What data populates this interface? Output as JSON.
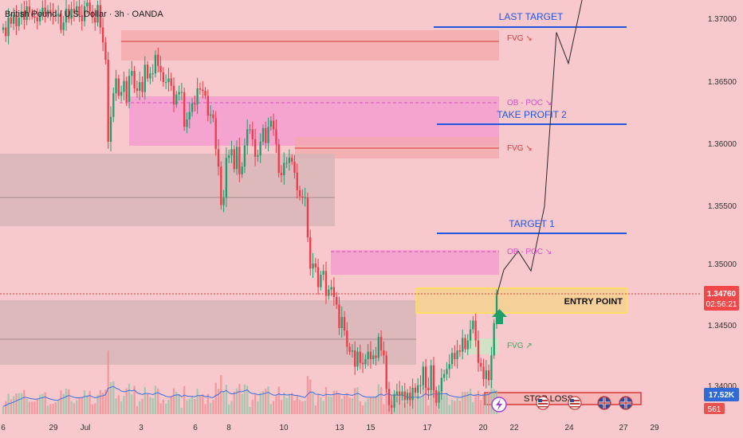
{
  "header": {
    "symbol_title": "British Pound / U.S. Dollar · 3h · OANDA"
  },
  "chart_data": {
    "type": "candlestick",
    "symbol": "British Pound / U.S. Dollar",
    "interval": "3h",
    "broker": "OANDA",
    "y_axis": {
      "ylim": [
        1.3375,
        1.3726
      ],
      "ticks": [
        "1.37000",
        "1.36500",
        "1.36000",
        "1.35500",
        "1.35000",
        "1.34500",
        "1.34000"
      ]
    },
    "x_axis": {
      "ticks": [
        "6",
        "29",
        "Jul",
        "3",
        "6",
        "8",
        "10",
        "13",
        "15",
        "17",
        "20",
        "22",
        "24",
        "27",
        "29"
      ]
    },
    "price_label": {
      "value": "1.34760",
      "countdown": "02:56:21"
    },
    "volume_label": {
      "value": "17.52K",
      "count": "561"
    },
    "annotations": [
      {
        "label": "LAST TARGET",
        "price": 1.3695
      },
      {
        "label": "TAKE PROFIT 2",
        "price": 1.3617
      },
      {
        "label": "TARGET 1",
        "price": 1.3527
      },
      {
        "label": "ENTRY POINT",
        "price_top": 1.3479,
        "price_bottom": 1.3464
      },
      {
        "label": "STOP LOSS",
        "price": 1.3386
      }
    ],
    "zones": [
      {
        "label": "FVG ↘",
        "price_top": 1.3696,
        "price_bottom": 1.367
      },
      {
        "label": "OB - POC ↘",
        "price_top": 1.3641,
        "price_bottom": 1.36
      },
      {
        "label": "FVG ↘",
        "price_top": 1.3608,
        "price_bottom": 1.3589
      },
      {
        "label": "OB - POC ↘",
        "price_top": 1.3514,
        "price_bottom": 1.3493
      },
      {
        "label": "FVG ↗",
        "price_top": 1.3437,
        "price_bottom": 1.3426
      }
    ],
    "projection_path": [
      1.3476,
      1.3497,
      1.3512,
      1.3496,
      1.3548,
      1.3688,
      1.3663,
      1.3717
    ],
    "candles": [
      [
        1.369,
        1.3692
      ],
      [
        1.3692,
        1.3685
      ],
      [
        1.3685,
        1.37
      ],
      [
        1.37,
        1.3695
      ],
      [
        1.3695,
        1.3702
      ],
      [
        1.3702,
        1.3693
      ],
      [
        1.3693,
        1.37
      ],
      [
        1.37,
        1.3705
      ],
      [
        1.3705,
        1.3698
      ],
      [
        1.3698,
        1.3709
      ],
      [
        1.3709,
        1.3704
      ],
      [
        1.3704,
        1.3701
      ],
      [
        1.3701,
        1.37
      ],
      [
        1.37,
        1.3697
      ],
      [
        1.3697,
        1.3703
      ],
      [
        1.3703,
        1.3708
      ],
      [
        1.3708,
        1.3703
      ],
      [
        1.3703,
        1.3706
      ],
      [
        1.3706,
        1.3703
      ],
      [
        1.3703,
        1.3702
      ],
      [
        1.3702,
        1.3701
      ],
      [
        1.3701,
        1.3703
      ],
      [
        1.3703,
        1.369
      ],
      [
        1.369,
        1.3696
      ],
      [
        1.3696,
        1.3707
      ],
      [
        1.3707,
        1.3699
      ],
      [
        1.3699,
        1.3707
      ],
      [
        1.3707,
        1.3704
      ],
      [
        1.3704,
        1.3709
      ],
      [
        1.3709,
        1.3702
      ],
      [
        1.3702,
        1.3697
      ],
      [
        1.3697,
        1.3709
      ],
      [
        1.3709,
        1.3712
      ],
      [
        1.3712,
        1.3705
      ],
      [
        1.3705,
        1.37
      ],
      [
        1.37,
        1.3696
      ],
      [
        1.3696,
        1.371
      ],
      [
        1.371,
        1.3692
      ],
      [
        1.3692,
        1.368
      ],
      [
        1.368,
        1.3666
      ],
      [
        1.3666,
        1.36
      ],
      [
        1.36,
        1.362
      ],
      [
        1.362,
        1.3639
      ],
      [
        1.3639,
        1.3651
      ],
      [
        1.3651,
        1.3637
      ],
      [
        1.3637,
        1.364
      ],
      [
        1.364,
        1.3649
      ],
      [
        1.3649,
        1.3632
      ],
      [
        1.3632,
        1.3653
      ],
      [
        1.3653,
        1.3657
      ],
      [
        1.3657,
        1.3643
      ],
      [
        1.3643,
        1.3641
      ],
      [
        1.3641,
        1.3648
      ],
      [
        1.3648,
        1.364
      ],
      [
        1.364,
        1.3662
      ],
      [
        1.3662,
        1.3651
      ],
      [
        1.3651,
        1.3655
      ],
      [
        1.3655,
        1.3655
      ],
      [
        1.3655,
        1.367
      ],
      [
        1.367,
        1.3661
      ],
      [
        1.3661,
        1.3656
      ],
      [
        1.3656,
        1.3648
      ],
      [
        1.3648,
        1.3648
      ],
      [
        1.3648,
        1.3651
      ],
      [
        1.3651,
        1.3645
      ],
      [
        1.3645,
        1.363
      ],
      [
        1.363,
        1.3638
      ],
      [
        1.3638,
        1.364
      ],
      [
        1.364,
        1.364
      ],
      [
        1.364,
        1.3612
      ],
      [
        1.3612,
        1.3618
      ],
      [
        1.3618,
        1.3624
      ],
      [
        1.3624,
        1.3631
      ],
      [
        1.3631,
        1.363
      ],
      [
        1.363,
        1.3643
      ],
      [
        1.3643,
        1.3642
      ],
      [
        1.3642,
        1.3641
      ],
      [
        1.3641,
        1.3637
      ],
      [
        1.3637,
        1.3621
      ],
      [
        1.3621,
        1.3622
      ],
      [
        1.3622,
        1.3619
      ],
      [
        1.3619,
        1.3594
      ],
      [
        1.3594,
        1.358
      ],
      [
        1.358,
        1.3549
      ],
      [
        1.3549,
        1.3555
      ],
      [
        1.3555,
        1.3587
      ],
      [
        1.3587,
        1.3589
      ],
      [
        1.3589,
        1.3594
      ],
      [
        1.3594,
        1.3578
      ],
      [
        1.3578,
        1.3596
      ],
      [
        1.3596,
        1.3574
      ],
      [
        1.3574,
        1.358
      ],
      [
        1.358,
        1.3597
      ],
      [
        1.3597,
        1.361
      ],
      [
        1.361,
        1.361
      ],
      [
        1.361,
        1.3602
      ],
      [
        1.3602,
        1.3588
      ],
      [
        1.3588,
        1.3589
      ],
      [
        1.3589,
        1.36
      ],
      [
        1.36,
        1.3611
      ],
      [
        1.3611,
        1.3599
      ],
      [
        1.3599,
        1.3612
      ],
      [
        1.3612,
        1.3617
      ],
      [
        1.3617,
        1.361
      ],
      [
        1.361,
        1.3598
      ],
      [
        1.3598,
        1.3575
      ],
      [
        1.3575,
        1.3573
      ],
      [
        1.3573,
        1.3583
      ],
      [
        1.3583,
        1.3583
      ],
      [
        1.3583,
        1.3587
      ],
      [
        1.3587,
        1.3584
      ],
      [
        1.3584,
        1.3575
      ],
      [
        1.3575,
        1.3561
      ],
      [
        1.3561,
        1.3556
      ],
      [
        1.3556,
        1.3555
      ],
      [
        1.3555,
        1.3555
      ],
      [
        1.3555,
        1.3523
      ],
      [
        1.3523,
        1.3498
      ],
      [
        1.3498,
        1.3502
      ],
      [
        1.3502,
        1.3499
      ],
      [
        1.3499,
        1.3483
      ],
      [
        1.3483,
        1.3493
      ],
      [
        1.3493,
        1.3496
      ],
      [
        1.3496,
        1.3476
      ],
      [
        1.3476,
        1.3481
      ],
      [
        1.3481,
        1.3483
      ],
      [
        1.3483,
        1.3475
      ],
      [
        1.3475,
        1.3469
      ],
      [
        1.3469,
        1.345
      ],
      [
        1.345,
        1.3459
      ],
      [
        1.3459,
        1.3448
      ],
      [
        1.3448,
        1.3435
      ],
      [
        1.3435,
        1.3431
      ],
      [
        1.3431,
        1.3432
      ],
      [
        1.3432,
        1.3419
      ],
      [
        1.3419,
        1.3431
      ],
      [
        1.3431,
        1.3422
      ],
      [
        1.3422,
        1.3421
      ],
      [
        1.3421,
        1.3425
      ],
      [
        1.3425,
        1.3431
      ],
      [
        1.3431,
        1.3425
      ],
      [
        1.3425,
        1.3428
      ],
      [
        1.3428,
        1.3426
      ],
      [
        1.3426,
        1.3443
      ],
      [
        1.3443,
        1.3432
      ],
      [
        1.3432,
        1.3428
      ],
      [
        1.3428,
        1.3401
      ],
      [
        1.3401,
        1.3388
      ],
      [
        1.3388,
        1.3386
      ],
      [
        1.3386,
        1.3396
      ],
      [
        1.3396,
        1.3399
      ],
      [
        1.3399,
        1.3396
      ],
      [
        1.3396,
        1.3399
      ],
      [
        1.3399,
        1.3392
      ],
      [
        1.3392,
        1.3398
      ],
      [
        1.3398,
        1.3392
      ],
      [
        1.3392,
        1.3402
      ],
      [
        1.3402,
        1.3398
      ],
      [
        1.3398,
        1.3404
      ],
      [
        1.3404,
        1.3404
      ],
      [
        1.3404,
        1.3419
      ],
      [
        1.3419,
        1.3402
      ],
      [
        1.3402,
        1.34
      ],
      [
        1.34,
        1.342
      ],
      [
        1.342,
        1.34
      ],
      [
        1.34,
        1.339
      ],
      [
        1.339,
        1.3399
      ],
      [
        1.3399,
        1.341
      ],
      [
        1.341,
        1.3413
      ],
      [
        1.3413,
        1.3417
      ],
      [
        1.3417,
        1.3421
      ],
      [
        1.3421,
        1.343
      ],
      [
        1.343,
        1.3425
      ],
      [
        1.3425,
        1.3432
      ],
      [
        1.3432,
        1.3431
      ],
      [
        1.3431,
        1.3442
      ],
      [
        1.3442,
        1.3433
      ],
      [
        1.3433,
        1.344
      ],
      [
        1.344,
        1.3449
      ],
      [
        1.3449,
        1.3456
      ],
      [
        1.3456,
        1.344
      ],
      [
        1.344,
        1.3422
      ],
      [
        1.3422,
        1.3419
      ],
      [
        1.3419,
        1.3409
      ],
      [
        1.3409,
        1.3416
      ],
      [
        1.3416,
        1.3408
      ],
      [
        1.3408,
        1.3428
      ],
      [
        1.3428,
        1.3454
      ],
      [
        1.3454,
        1.3476
      ]
    ]
  }
}
